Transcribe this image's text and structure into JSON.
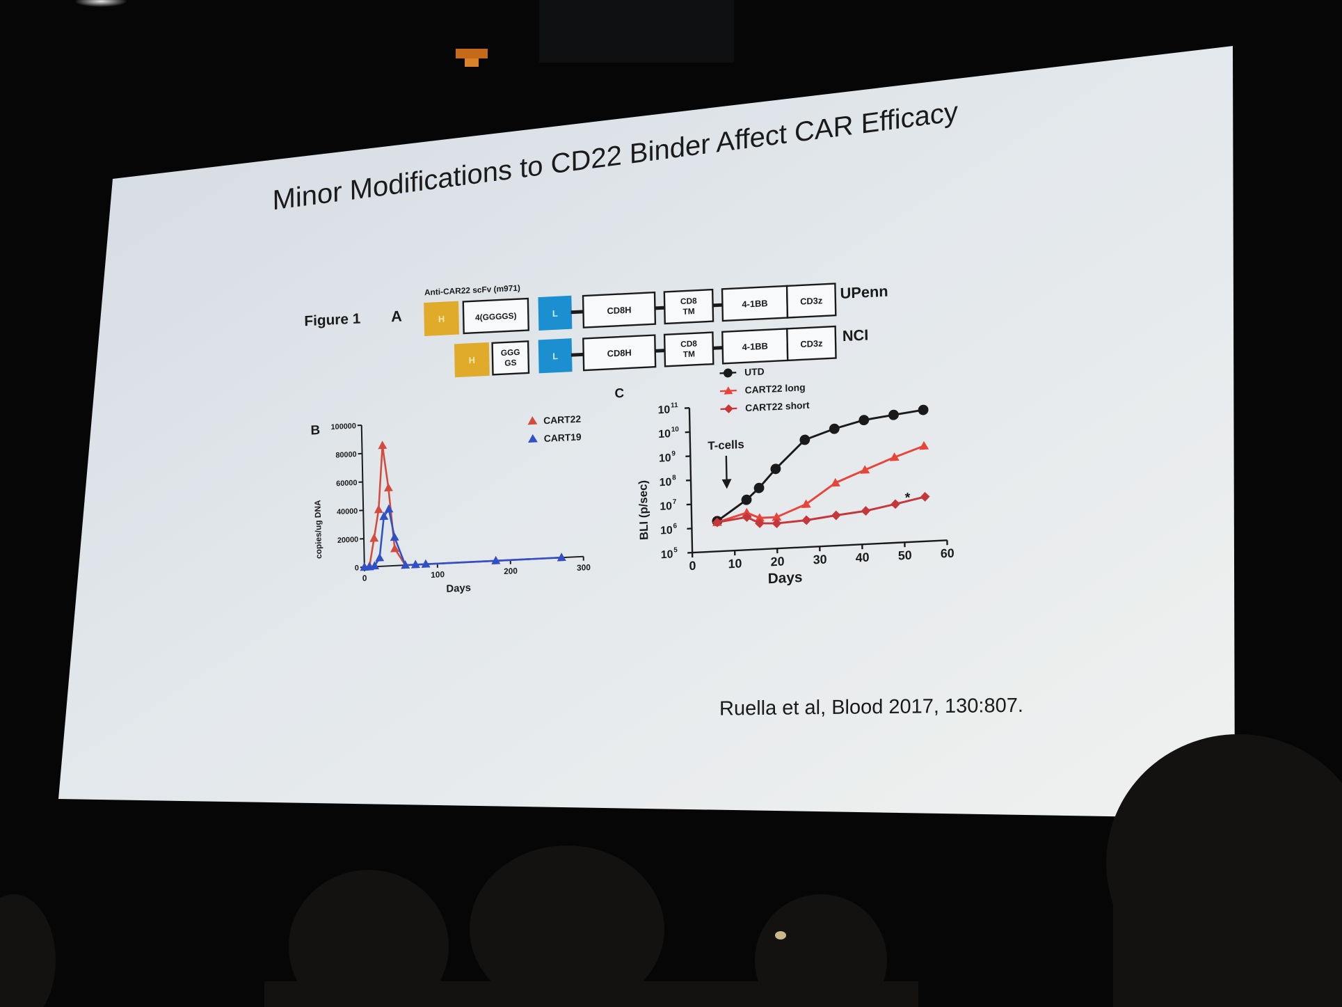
{
  "slide": {
    "title": "Minor Modifications to CD22 Binder Affect CAR Efficacy",
    "citation": "Ruella et al, Blood 2017, 130:807."
  },
  "figure": {
    "label": "Figure 1",
    "panel_a": {
      "panel": "A",
      "scfv_label": "Anti-CAR22 scFv (m971)",
      "constructs": [
        {
          "name": "UPenn",
          "segments": [
            "H",
            "4(GGGGS)",
            "L",
            "CD8H",
            "CD8 TM",
            "4-1BB",
            "CD3z"
          ]
        },
        {
          "name": "NCI",
          "segments": [
            "H",
            "GGG GS",
            "L",
            "CD8H",
            "CD8 TM",
            "4-1BB",
            "CD3z"
          ]
        }
      ],
      "colors": {
        "heavy": "#e0ab2a",
        "light": "#1b8fcf"
      }
    },
    "panel_b": {
      "panel": "B",
      "xlabel": "Days",
      "ylabel": "copies/ug DNA",
      "xticks": [
        "0",
        "100",
        "200",
        "300"
      ],
      "yticks": [
        "0",
        "20000",
        "40000",
        "60000",
        "80000",
        "100000"
      ]
    },
    "panel_c": {
      "panel": "C",
      "xlabel": "Days",
      "ylabel": "BLI (p/sec)",
      "xticks": [
        "0",
        "10",
        "20",
        "30",
        "40",
        "50",
        "60"
      ],
      "yticks": [
        "10",
        "10",
        "10",
        "10",
        "10",
        "10",
        "10"
      ],
      "yexps": [
        "5",
        "6",
        "7",
        "8",
        "9",
        "10",
        "11"
      ],
      "annotation": "T-cells",
      "star": "*"
    }
  },
  "chart_data": [
    {
      "type": "line",
      "xlabel": "Days",
      "ylabel": "copies/ug DNA",
      "xlim": [
        0,
        300
      ],
      "ylim": [
        0,
        100000
      ],
      "legend": "top-right",
      "series": [
        {
          "name": "CART22",
          "color": "#d24b3e",
          "x": [
            0,
            7,
            14,
            21,
            28,
            35,
            42,
            56,
            70,
            84,
            180,
            270
          ],
          "y": [
            0,
            500,
            20000,
            40000,
            85000,
            55000,
            12000,
            0,
            0,
            0,
            0,
            0
          ]
        },
        {
          "name": "CART19",
          "color": "#2f50c7",
          "x": [
            0,
            7,
            14,
            21,
            28,
            35,
            42,
            56,
            70,
            84,
            180,
            270
          ],
          "y": [
            0,
            0,
            500,
            6000,
            35000,
            40000,
            20000,
            0,
            0,
            0,
            0,
            0
          ]
        }
      ]
    },
    {
      "type": "line",
      "xlabel": "Days",
      "ylabel": "BLI (p/sec)",
      "xlim": [
        0,
        60
      ],
      "ylim": [
        100000,
        100000000000
      ],
      "yscale": "log",
      "legend": "top-left",
      "annotations": [
        {
          "text": "T-cells",
          "x": 13
        }
      ],
      "series": [
        {
          "name": "UTD",
          "color": "#1a1a1a",
          "x": [
            6,
            13,
            16,
            20,
            27,
            34,
            41,
            48,
            55
          ],
          "y": [
            1800000,
            12000000,
            35000000,
            200000000,
            2800000000,
            7000000000,
            14000000000,
            20000000000,
            28000000000
          ]
        },
        {
          "name": "CART22 long",
          "color": "#e8453a",
          "x": [
            6,
            13,
            16,
            20,
            27,
            34,
            41,
            48,
            55
          ],
          "y": [
            1600000,
            3500000,
            2000000,
            2000000,
            6000000,
            40000000,
            120000000,
            350000000,
            900000000
          ]
        },
        {
          "name": "CART22 short",
          "color": "#c4373a",
          "x": [
            6,
            13,
            16,
            20,
            27,
            34,
            41,
            48,
            55
          ],
          "y": [
            1600000,
            2300000,
            1200000,
            1100000,
            1300000,
            1800000,
            2400000,
            4000000,
            7000000
          ]
        }
      ]
    }
  ]
}
